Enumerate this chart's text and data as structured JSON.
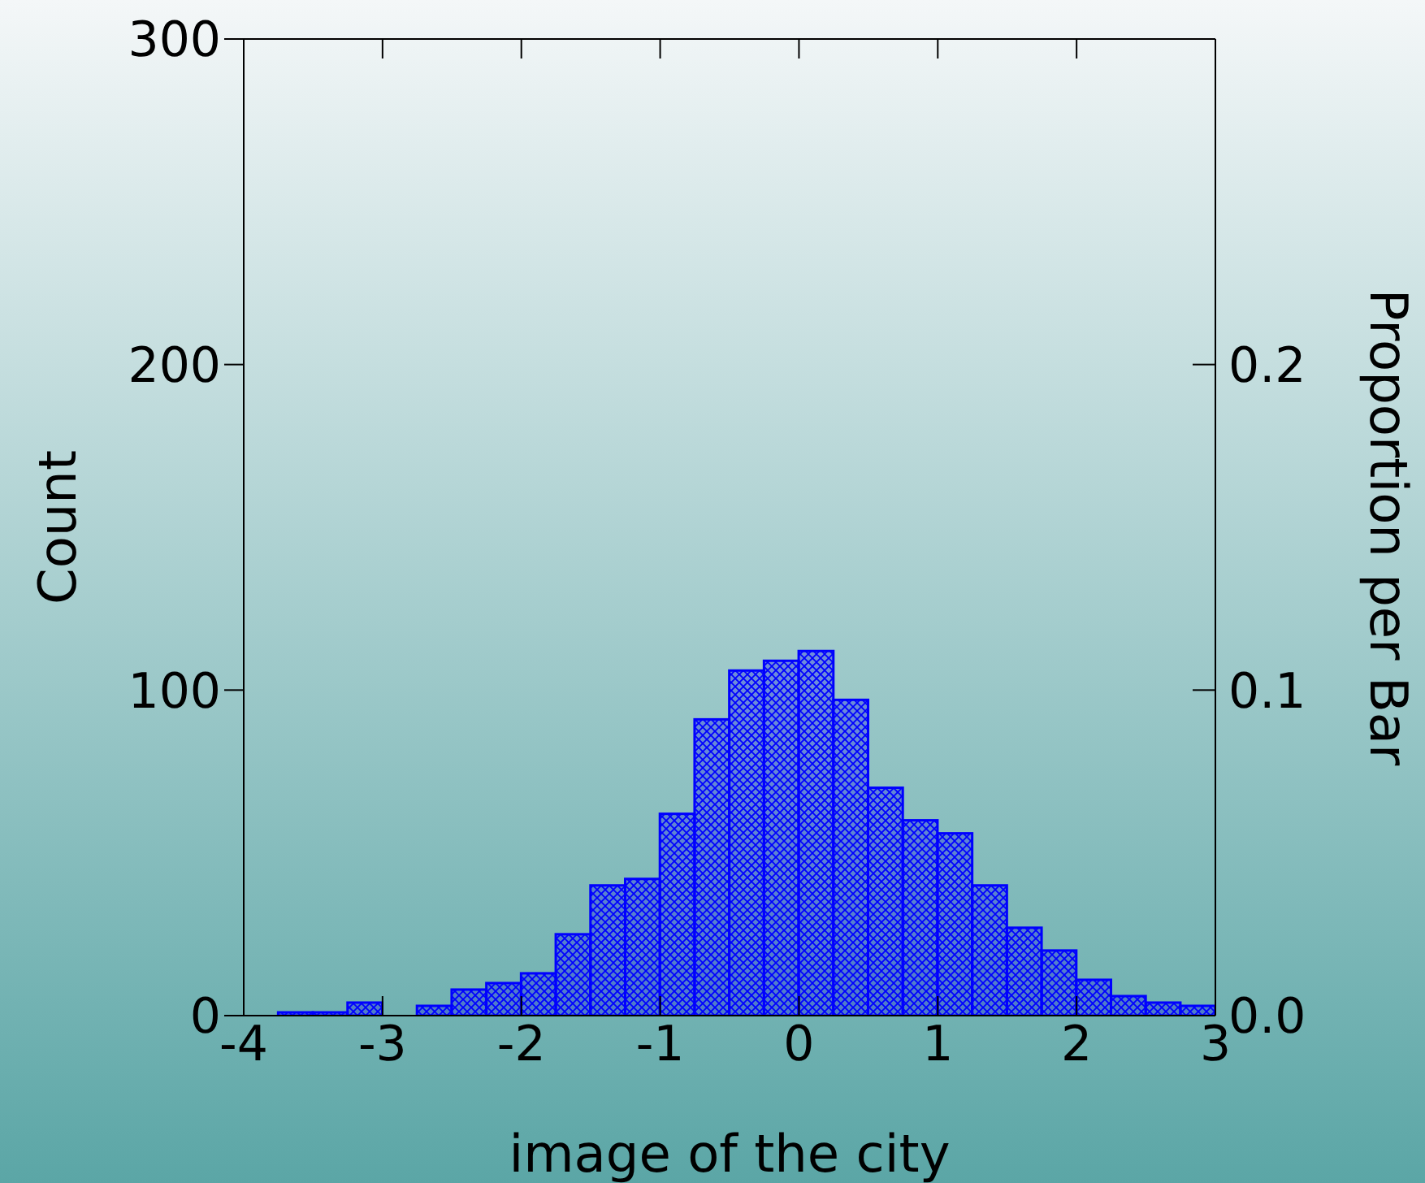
{
  "chart_data": {
    "type": "histogram",
    "xlabel": "image of the city",
    "ylabel": "Count",
    "y2label": "Proportion per Bar",
    "bins": [
      -4,
      -3.75,
      -3.5,
      -3.25,
      -3,
      -2.75,
      -2.5,
      -2.25,
      -2,
      -1.75,
      -1.5,
      -1.25,
      -1,
      -0.75,
      -0.5,
      -0.25,
      0,
      0.25,
      0.5,
      0.75,
      1,
      1.25,
      1.5,
      1.75,
      2,
      2.25,
      2.5,
      2.75,
      3
    ],
    "values": [
      0,
      1,
      1,
      4,
      0,
      3,
      8,
      10,
      13,
      25,
      40,
      42,
      62,
      91,
      106,
      109,
      112,
      97,
      70,
      60,
      56,
      40,
      27,
      20,
      11,
      6,
      4,
      3
    ],
    "color": "#0000ff",
    "xlim": [
      -4,
      3
    ],
    "xticks": [
      -4,
      -3,
      -2,
      -1,
      0,
      1,
      2,
      3
    ],
    "ylim": [
      0,
      300
    ],
    "yticks": [
      0,
      100,
      200,
      300
    ],
    "y2lim": [
      0,
      0.3
    ],
    "y2ticks": [
      {
        "value": 0,
        "label": "0.0"
      },
      {
        "value": 0.1,
        "label": "0.1"
      },
      {
        "value": 0.2,
        "label": "0.2"
      }
    ],
    "grid": false,
    "legend": false
  }
}
